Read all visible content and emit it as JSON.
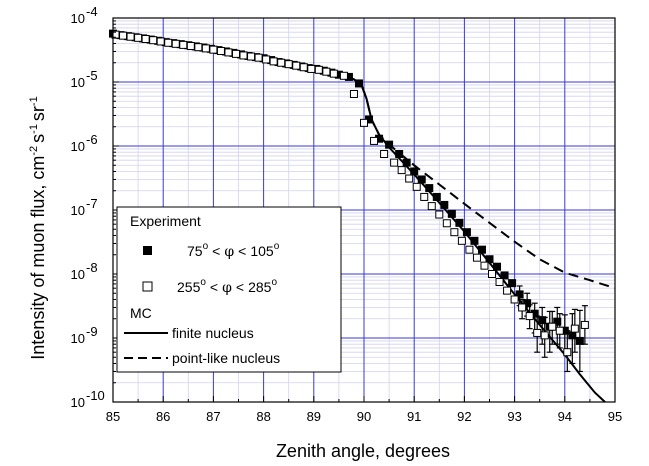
{
  "chart_data": {
    "type": "scatter",
    "title": "",
    "xlabel": "Zenith angle, degrees",
    "ylabel_main": "Intensity of muon flux, cm",
    "ylabel_exponents": [
      "-2",
      "-1",
      "-1"
    ],
    "ylabel_units": [
      "s",
      "sr"
    ],
    "xlim": [
      85,
      95
    ],
    "ylim": [
      1e-10,
      0.0001
    ],
    "yscale": "log",
    "grid": true,
    "x_ticks": [
      "85",
      "86",
      "87",
      "88",
      "89",
      "90",
      "91",
      "92",
      "93",
      "94",
      "95"
    ],
    "y_ticks": [
      {
        "value": 1e-10,
        "base": "10",
        "exp": "-10"
      },
      {
        "value": 1e-09,
        "base": "10",
        "exp": "-9"
      },
      {
        "value": 1e-08,
        "base": "10",
        "exp": "-8"
      },
      {
        "value": 1e-07,
        "base": "10",
        "exp": "-7"
      },
      {
        "value": 1e-06,
        "base": "10",
        "exp": "-6"
      },
      {
        "value": 1e-05,
        "base": "10",
        "exp": "-5"
      },
      {
        "value": 0.0001,
        "base": "10",
        "exp": "-4"
      }
    ],
    "legend": {
      "placement": "lower-left",
      "experiment_header": "Experiment",
      "mc_header": "MC",
      "series_labels": [
        {
          "lo": "75",
          "hi": "105"
        },
        {
          "lo": "255",
          "hi": "285"
        }
      ],
      "phi_symbol": "φ",
      "lt_symbol": "<",
      "degree_symbol": "o",
      "line_labels": [
        "finite nucleus",
        "point-like nucleus"
      ]
    },
    "series": [
      {
        "marker": "filled-square",
        "color": "#000000",
        "x": [
          85.0,
          85.15,
          85.3,
          85.45,
          85.6,
          85.75,
          85.9,
          86.05,
          86.2,
          86.35,
          86.5,
          86.65,
          86.8,
          86.95,
          87.1,
          87.25,
          87.4,
          87.55,
          87.7,
          87.85,
          88.0,
          88.15,
          88.3,
          88.45,
          88.6,
          88.75,
          88.9,
          89.05,
          89.2,
          89.35,
          89.5,
          89.7,
          89.9,
          90.1,
          90.3,
          90.5,
          90.7,
          90.85,
          91.0,
          91.15,
          91.3,
          91.45,
          91.6,
          91.75,
          91.9,
          92.05,
          92.2,
          92.35,
          92.5,
          92.65,
          92.8,
          92.95,
          93.1,
          93.25,
          93.4,
          93.55,
          93.7,
          93.85,
          94.0,
          94.15,
          94.3
        ],
        "y": [
          5.7e-05,
          5.4e-05,
          5.2e-05,
          5e-05,
          4.8e-05,
          4.6e-05,
          4.4e-05,
          4.2e-05,
          4.05e-05,
          3.9e-05,
          3.75e-05,
          3.6e-05,
          3.45e-05,
          3.3e-05,
          3.15e-05,
          3e-05,
          2.85e-05,
          2.7e-05,
          2.55e-05,
          2.45e-05,
          2.35e-05,
          2.2e-05,
          2.05e-05,
          1.95e-05,
          1.85e-05,
          1.75e-05,
          1.65e-05,
          1.6e-05,
          1.5e-05,
          1.4e-05,
          1.3e-05,
          1.2e-05,
          9.5e-06,
          2.6e-06,
          1.3e-06,
          1.05e-06,
          7.5e-07,
          5.5e-07,
          4e-07,
          3e-07,
          2.2e-07,
          1.6e-07,
          1.2e-07,
          8.7e-08,
          6.3e-08,
          4.5e-08,
          3.3e-08,
          2.4e-08,
          1.7e-08,
          1.3e-08,
          9.5e-09,
          7.2e-09,
          4.8e-09,
          3.5e-09,
          2.4e-09,
          1.9e-09,
          1.5e-09,
          1.8e-09,
          1.3e-09,
          1.1e-09,
          9e-10
        ],
        "err": [
          null,
          null,
          null,
          null,
          null,
          null,
          null,
          null,
          null,
          null,
          null,
          null,
          null,
          null,
          null,
          null,
          null,
          null,
          null,
          null,
          null,
          null,
          null,
          null,
          null,
          null,
          null,
          null,
          null,
          null,
          null,
          null,
          null,
          null,
          null,
          null,
          null,
          null,
          null,
          null,
          null,
          null,
          null,
          null,
          null,
          null,
          null,
          null,
          null,
          null,
          null,
          null,
          [
            3.2e-09,
            6.5e-09
          ],
          [
            2.2e-09,
            5e-09
          ],
          [
            1.2e-09,
            3.5e-09
          ],
          [
            8e-10,
            3e-09
          ],
          [
            6e-10,
            2.6e-09
          ],
          [
            8e-10,
            3e-09
          ],
          [
            6e-10,
            2.3e-09
          ],
          [
            4e-10,
            2.4e-09
          ],
          [
            3e-10,
            2.7e-09
          ]
        ]
      },
      {
        "marker": "open-square",
        "color": "#000000",
        "x": [
          85.05,
          85.2,
          85.35,
          85.5,
          85.65,
          85.8,
          85.95,
          86.1,
          86.25,
          86.4,
          86.55,
          86.7,
          86.85,
          87.0,
          87.15,
          87.3,
          87.45,
          87.6,
          87.75,
          87.9,
          88.05,
          88.2,
          88.35,
          88.5,
          88.65,
          88.8,
          88.95,
          89.1,
          89.25,
          89.4,
          89.6,
          89.8,
          90.0,
          90.2,
          90.4,
          90.6,
          90.75,
          90.9,
          91.05,
          91.2,
          91.35,
          91.5,
          91.65,
          91.8,
          91.95,
          92.1,
          92.25,
          92.4,
          92.55,
          92.7,
          92.85,
          93.0,
          93.15,
          93.3,
          93.45,
          93.6,
          93.75,
          93.9,
          94.05,
          94.2,
          94.4
        ],
        "y": [
          5.5e-05,
          5.3e-05,
          5.1e-05,
          4.9e-05,
          4.7e-05,
          4.5e-05,
          4.3e-05,
          4.1e-05,
          3.95e-05,
          3.8e-05,
          3.65e-05,
          3.5e-05,
          3.35e-05,
          3.2e-05,
          3.05e-05,
          2.9e-05,
          2.75e-05,
          2.6e-05,
          2.5e-05,
          2.4e-05,
          2.25e-05,
          2.1e-05,
          2e-05,
          1.9e-05,
          1.8e-05,
          1.7e-05,
          1.6e-05,
          1.55e-05,
          1.45e-05,
          1.35e-05,
          1.25e-05,
          6.5e-06,
          2.3e-06,
          1.2e-06,
          7.5e-07,
          5.5e-07,
          4.2e-07,
          3.1e-07,
          2.3e-07,
          1.6e-07,
          1.15e-07,
          8.5e-08,
          6.2e-08,
          4.5e-08,
          3.3e-08,
          2.4e-08,
          1.8e-08,
          1.35e-08,
          1e-08,
          7.5e-09,
          5.5e-09,
          4e-09,
          3e-09,
          2.2e-09,
          1.2e-09,
          1.1e-09,
          1.5e-09,
          1.3e-09,
          6e-10,
          1.4e-09,
          1.6e-09
        ],
        "err": [
          null,
          null,
          null,
          null,
          null,
          null,
          null,
          null,
          null,
          null,
          null,
          null,
          null,
          null,
          null,
          null,
          null,
          null,
          null,
          null,
          null,
          null,
          null,
          null,
          null,
          null,
          null,
          null,
          null,
          null,
          null,
          null,
          null,
          null,
          null,
          null,
          null,
          null,
          null,
          null,
          null,
          null,
          null,
          null,
          null,
          null,
          null,
          null,
          null,
          null,
          null,
          null,
          [
            2e-09,
            4e-09
          ],
          [
            1.4e-09,
            3.3e-09
          ],
          [
            6e-10,
            2.2e-09
          ],
          [
            5e-10,
            2.1e-09
          ],
          [
            8e-10,
            2.6e-09
          ],
          [
            7e-10,
            2.4e-09
          ],
          [
            3e-10,
            1.3e-09
          ],
          [
            6e-10,
            2.8e-09
          ],
          [
            8e-10,
            3.2e-09
          ]
        ]
      }
    ],
    "lines": [
      {
        "style": "solid",
        "x": [
          85.0,
          86.0,
          87.0,
          88.0,
          89.0,
          89.5,
          89.8,
          89.95,
          90.05,
          90.15,
          90.3,
          90.5,
          91.0,
          91.5,
          92.0,
          92.5,
          93.0,
          93.5,
          94.0,
          94.3,
          94.6,
          94.8
        ],
        "y": [
          5.8e-05,
          4.3e-05,
          3.15e-05,
          2.3e-05,
          1.7e-05,
          1.35e-05,
          1.1e-05,
          9e-06,
          5.5e-06,
          2.6e-06,
          1.5e-06,
          9.5e-07,
          3.6e-07,
          1.3e-07,
          4.6e-08,
          1.5e-08,
          4.8e-09,
          1.6e-09,
          5.5e-10,
          2.7e-10,
          1.4e-10,
          1e-10
        ]
      },
      {
        "style": "dashed",
        "x": [
          85.0,
          86.0,
          87.0,
          88.0,
          89.0,
          89.5,
          89.8,
          89.95,
          90.05,
          90.15,
          90.3,
          90.5,
          91.0,
          91.5,
          92.0,
          92.5,
          93.0,
          93.5,
          94.0,
          94.5,
          95.0
        ],
        "y": [
          5.8e-05,
          4.3e-05,
          3.15e-05,
          2.3e-05,
          1.7e-05,
          1.35e-05,
          1.1e-05,
          9e-06,
          5.5e-06,
          2.6e-06,
          1.5e-06,
          1.05e-06,
          5e-07,
          2.5e-07,
          1.25e-07,
          6.3e-08,
          3.2e-08,
          1.7e-08,
          1.05e-08,
          8e-09,
          6e-09
        ]
      }
    ]
  }
}
